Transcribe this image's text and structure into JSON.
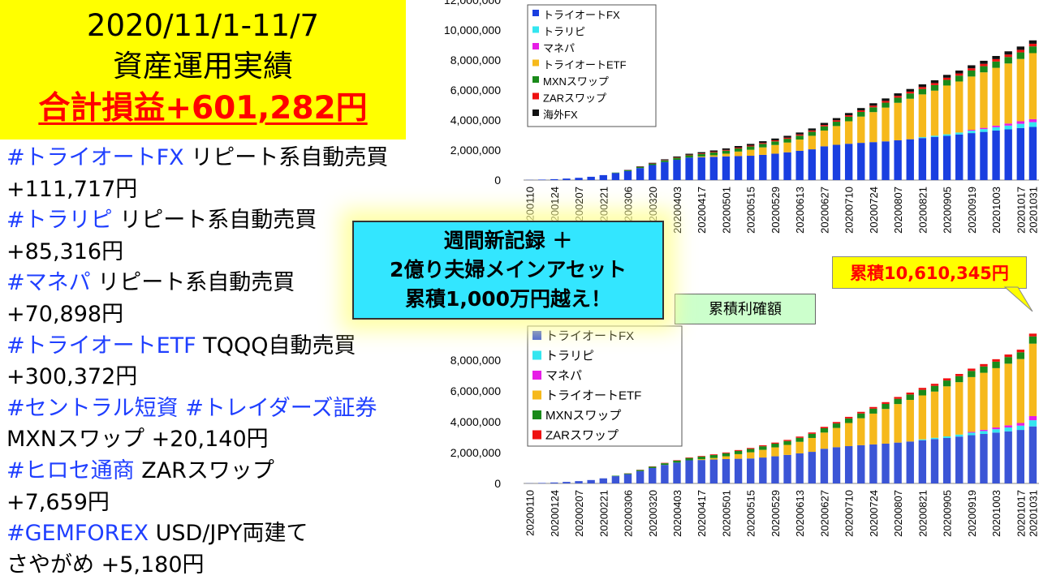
{
  "title": {
    "period": "2020/11/1-11/7",
    "subtitle": "資産運用実績",
    "total": "合計損益+601,282円"
  },
  "items": [
    {
      "tag": "#トライオートFX",
      "desc": " リピート系自動売買",
      "amount": "+111,717円"
    },
    {
      "tag": "#トラリピ",
      "desc": " リピート系自動売買",
      "amount": "+85,316円"
    },
    {
      "tag": "#マネパ",
      "desc": " リピート系自動売買",
      "amount": "+70,898円"
    },
    {
      "tag": "#トライオートETF",
      "desc": " TQQQ自動売買",
      "amount": "+300,372円"
    },
    {
      "tag": "#セントラル短資 #トレイダーズ証券",
      "desc": "",
      "line2": "MXNスワップ +20,140円"
    },
    {
      "tag": "#ヒロセ通商",
      "desc": " ZARスワップ",
      "amount": "+7,659円"
    },
    {
      "tag": "#GEMFOREX",
      "desc": " USD/JPY両建て",
      "line2": "さやがめ +5,180円"
    }
  ],
  "callout": {
    "line1": "週間新記録 ＋",
    "line2": "2億り夫婦メインアセット",
    "line3": "累積1,000万円越え！"
  },
  "label_box": "累積利確額",
  "cumulative_badge": "累積10,610,345円",
  "chart_data": [
    {
      "type": "bar",
      "stacked": true,
      "x_labels": [
        "20200110",
        "20200124",
        "20200207",
        "20200221",
        "20200306",
        "20200320",
        "20200403",
        "20200417",
        "20200501",
        "20200515",
        "20200529",
        "20200613",
        "20200627",
        "20200710",
        "20200724",
        "20200807",
        "20200821",
        "20200905",
        "20200919",
        "20201003",
        "20201017",
        "20201031"
      ],
      "ylim": [
        0,
        12000000
      ],
      "yticks": [
        "0",
        "2,000,000",
        "4,000,000",
        "6,000,000",
        "8,000,000",
        "10,000,000",
        "12,000,000"
      ],
      "legend_position": "top-left",
      "series": [
        {
          "name": "トライオートFX",
          "color": "#1a3fe0",
          "values": [
            10000,
            30000,
            60000,
            100000,
            150000,
            220000,
            330000,
            470000,
            600000,
            800000,
            1000000,
            1200000,
            1350000,
            1500000,
            1520000,
            1550000,
            1580000,
            1600000,
            1620000,
            1680000,
            1760000,
            1850000,
            1950000,
            2050000,
            2250000,
            2350000,
            2420000,
            2480000,
            2530000,
            2580000,
            2650000,
            2720000,
            2800000,
            2880000,
            2950000,
            3040000,
            3130000,
            3210000,
            3300000,
            3380000,
            3470000,
            3540000
          ]
        },
        {
          "name": "トラリピ",
          "color": "#33e6f0",
          "values": [
            0,
            0,
            0,
            0,
            0,
            0,
            0,
            0,
            0,
            0,
            0,
            0,
            0,
            0,
            0,
            0,
            0,
            0,
            0,
            0,
            0,
            0,
            0,
            0,
            0,
            0,
            0,
            0,
            0,
            0,
            0,
            0,
            60000,
            80000,
            100000,
            130000,
            160000,
            190000,
            220000,
            250000,
            280000,
            320000
          ]
        },
        {
          "name": "マネパ",
          "color": "#e61ee6",
          "values": [
            0,
            0,
            0,
            0,
            0,
            0,
            0,
            0,
            0,
            0,
            0,
            0,
            0,
            0,
            0,
            0,
            0,
            0,
            0,
            0,
            0,
            0,
            0,
            0,
            0,
            0,
            0,
            0,
            0,
            0,
            0,
            0,
            0,
            0,
            0,
            0,
            60000,
            80000,
            110000,
            140000,
            170000,
            200000
          ]
        },
        {
          "name": "トライオートETF",
          "color": "#f6b91c",
          "values": [
            0,
            0,
            0,
            0,
            0,
            0,
            0,
            0,
            0,
            0,
            0,
            0,
            0,
            0,
            50000,
            100000,
            180000,
            300000,
            400000,
            500000,
            580000,
            650000,
            750000,
            900000,
            1050000,
            1250000,
            1500000,
            1750000,
            2000000,
            2250000,
            2500000,
            2700000,
            2850000,
            3000000,
            3250000,
            3400000,
            3550000,
            3700000,
            3850000,
            4000000,
            4150000,
            4400000
          ]
        },
        {
          "name": "MXNスワップ",
          "color": "#1a8a1a",
          "values": [
            0,
            0,
            0,
            0,
            0,
            0,
            0,
            30000,
            50000,
            70000,
            90000,
            110000,
            130000,
            150000,
            170000,
            190000,
            200000,
            210000,
            220000,
            230000,
            240000,
            250000,
            260000,
            270000,
            280000,
            290000,
            300000,
            310000,
            320000,
            330000,
            340000,
            350000,
            360000,
            370000,
            380000,
            390000,
            400000,
            410000,
            420000,
            430000,
            440000,
            450000
          ]
        },
        {
          "name": "ZARスワップ",
          "color": "#ee1111",
          "values": [
            0,
            0,
            0,
            0,
            0,
            0,
            0,
            0,
            10000,
            15000,
            20000,
            25000,
            30000,
            35000,
            40000,
            45000,
            50000,
            55000,
            60000,
            65000,
            70000,
            75000,
            80000,
            85000,
            90000,
            95000,
            100000,
            105000,
            110000,
            115000,
            120000,
            125000,
            130000,
            135000,
            140000,
            145000,
            150000,
            155000,
            160000,
            165000,
            170000,
            175000
          ]
        },
        {
          "name": "海外FX",
          "color": "#111111",
          "values": [
            0,
            0,
            0,
            0,
            0,
            0,
            0,
            0,
            20000,
            30000,
            40000,
            50000,
            60000,
            70000,
            80000,
            90000,
            100000,
            105000,
            110000,
            115000,
            120000,
            125000,
            130000,
            135000,
            140000,
            145000,
            150000,
            155000,
            160000,
            165000,
            170000,
            175000,
            180000,
            185000,
            190000,
            195000,
            200000,
            205000,
            210000,
            215000,
            220000,
            225000
          ]
        }
      ]
    },
    {
      "type": "bar",
      "stacked": true,
      "x_labels": [
        "20200110",
        "20200124",
        "20200207",
        "20200221",
        "20200306",
        "20200320",
        "20200403",
        "20200417",
        "20200501",
        "20200515",
        "20200529",
        "20200613",
        "20200627",
        "20200710",
        "20200724",
        "20200807",
        "20200821",
        "20200905",
        "20200919",
        "20201003",
        "20201017",
        "20201031"
      ],
      "ylim": [
        0,
        10000000
      ],
      "yticks": [
        "0",
        "2,000,000",
        "4,000,000",
        "6,000,000",
        "8,000,000"
      ],
      "legend_position": "top-left",
      "series": [
        {
          "name": "トライオートFX",
          "color": "#3b55d6",
          "values": [
            10000,
            30000,
            60000,
            100000,
            150000,
            220000,
            330000,
            470000,
            600000,
            800000,
            1000000,
            1200000,
            1350000,
            1500000,
            1520000,
            1550000,
            1580000,
            1600000,
            1620000,
            1680000,
            1760000,
            1850000,
            1950000,
            2050000,
            2250000,
            2350000,
            2420000,
            2480000,
            2530000,
            2580000,
            2650000,
            2720000,
            2800000,
            2880000,
            2950000,
            3040000,
            3130000,
            3210000,
            3300000,
            3380000,
            3470000,
            3700000
          ]
        },
        {
          "name": "トラリピ",
          "color": "#33e6f0",
          "values": [
            0,
            0,
            0,
            0,
            0,
            0,
            0,
            0,
            0,
            0,
            0,
            0,
            0,
            0,
            0,
            0,
            0,
            0,
            0,
            0,
            0,
            0,
            0,
            0,
            0,
            0,
            0,
            0,
            0,
            0,
            0,
            0,
            60000,
            80000,
            100000,
            130000,
            160000,
            190000,
            220000,
            250000,
            280000,
            400000
          ]
        },
        {
          "name": "マネパ",
          "color": "#e61ee6",
          "values": [
            0,
            0,
            0,
            0,
            0,
            0,
            0,
            0,
            0,
            0,
            0,
            0,
            0,
            0,
            0,
            0,
            0,
            0,
            0,
            0,
            0,
            0,
            0,
            0,
            0,
            0,
            0,
            0,
            0,
            0,
            0,
            0,
            0,
            0,
            0,
            0,
            60000,
            80000,
            110000,
            140000,
            170000,
            270000
          ]
        },
        {
          "name": "トライオートETF",
          "color": "#f6b91c",
          "values": [
            0,
            0,
            0,
            0,
            0,
            0,
            0,
            0,
            0,
            0,
            0,
            0,
            0,
            0,
            50000,
            100000,
            180000,
            300000,
            400000,
            500000,
            580000,
            650000,
            750000,
            900000,
            1050000,
            1250000,
            1500000,
            1750000,
            2000000,
            2250000,
            2500000,
            2700000,
            2850000,
            3000000,
            3250000,
            3400000,
            3550000,
            3700000,
            3850000,
            4000000,
            4150000,
            4700000
          ]
        },
        {
          "name": "MXNスワップ",
          "color": "#1a8a1a",
          "values": [
            0,
            0,
            0,
            0,
            0,
            0,
            0,
            30000,
            50000,
            70000,
            90000,
            110000,
            130000,
            150000,
            170000,
            190000,
            200000,
            210000,
            220000,
            230000,
            240000,
            250000,
            260000,
            270000,
            280000,
            290000,
            300000,
            310000,
            320000,
            330000,
            340000,
            350000,
            360000,
            370000,
            380000,
            390000,
            400000,
            410000,
            420000,
            430000,
            440000,
            470000
          ]
        },
        {
          "name": "ZARスワップ",
          "color": "#ee1111",
          "values": [
            0,
            0,
            0,
            0,
            0,
            0,
            0,
            0,
            10000,
            15000,
            20000,
            25000,
            30000,
            35000,
            40000,
            45000,
            50000,
            55000,
            60000,
            65000,
            70000,
            75000,
            80000,
            85000,
            90000,
            95000,
            100000,
            105000,
            110000,
            115000,
            120000,
            125000,
            130000,
            135000,
            140000,
            145000,
            150000,
            155000,
            160000,
            165000,
            170000,
            180000
          ]
        }
      ]
    }
  ]
}
